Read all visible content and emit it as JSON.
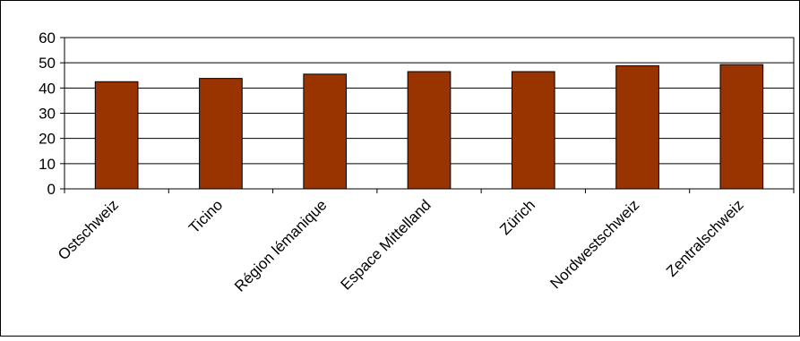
{
  "chart_data": {
    "type": "bar",
    "title": "",
    "xlabel": "",
    "ylabel": "",
    "categories": [
      "Ostschweiz",
      "Ticino",
      "Région lémanique",
      "Espace Mittelland",
      "Zürich",
      "Nordwestschweiz",
      "Zentralschweiz"
    ],
    "values": [
      42.5,
      43.8,
      45.5,
      46.5,
      46.5,
      48.8,
      49.3
    ],
    "ylim": [
      0,
      60
    ],
    "yticks": [
      "0",
      "10",
      "20",
      "30",
      "40",
      "50",
      "60"
    ],
    "bar_color": "#993300",
    "gridlines": true,
    "legend": "none"
  }
}
